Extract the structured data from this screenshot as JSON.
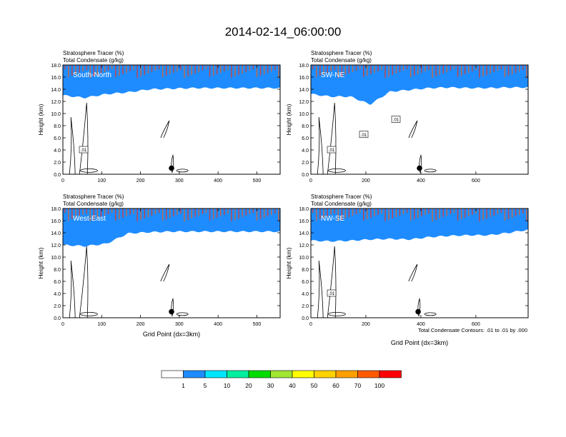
{
  "figure": {
    "title": "2014-02-14_06:00:00",
    "footnote": "Total Condensate Contours: .01 to .01 by .000"
  },
  "colorbar": {
    "colors": [
      "#ffffff",
      "#1e8cff",
      "#00e6ff",
      "#00f0a0",
      "#00dc00",
      "#a0e632",
      "#ffff00",
      "#ffd200",
      "#ffa000",
      "#ff5a00",
      "#ff0000"
    ],
    "labels": [
      "1",
      "5",
      "10",
      "20",
      "30",
      "40",
      "50",
      "60",
      "70",
      "100"
    ]
  },
  "colors": {
    "cloud_bands": [
      "#ff0000",
      "#ff5a00",
      "#ffa000",
      "#ffd200",
      "#ffff00",
      "#a0e632",
      "#00dc00",
      "#00f0a0",
      "#00e6ff",
      "#1e8cff"
    ]
  },
  "chart_data": [
    {
      "type": "heatmap",
      "panel": "South-North",
      "subtitle_lines": [
        "Stratosphere Tracer   (%)",
        "Total Condensate   (g/kg)"
      ],
      "xlabel": "",
      "ylabel": "Height (km)",
      "xlim": [
        0,
        560
      ],
      "ylim": [
        0,
        18
      ],
      "xticks": [
        0,
        100,
        200,
        300,
        400,
        500
      ],
      "yticks": [
        "0.0",
        "2.0",
        "4.0",
        "6.0",
        "8.0",
        "10.0",
        "12.0",
        "14.0",
        "16.0",
        "18.0"
      ],
      "contour_labels": [
        ".01"
      ],
      "marker": {
        "x": 280,
        "y": 1.0
      },
      "tracer_top_km": [
        14.9,
        14.6,
        14.6,
        14.7,
        14.8,
        14.8,
        14.6,
        14.5,
        14.6,
        14.6,
        14.6
      ],
      "blue_extent_km": [
        13.0,
        12.6,
        13.2,
        13.5,
        14.0,
        14.1,
        14.2,
        14.2,
        14.2,
        14.2,
        14.2
      ]
    },
    {
      "type": "heatmap",
      "panel": "SW-NE",
      "subtitle_lines": [
        "Stratosphere Tracer   (%)",
        "Total Condensate   (g/kg)"
      ],
      "xlabel": "",
      "ylabel": "Height (km)",
      "xlim": [
        0,
        790
      ],
      "ylim": [
        0,
        18
      ],
      "xticks": [
        0,
        200,
        400,
        600
      ],
      "yticks": [
        "0.0",
        "2.0",
        "4.0",
        "6.0",
        "8.0",
        "10.0",
        "12.0",
        "14.0",
        "16.0",
        "18.0"
      ],
      "contour_labels": [
        ".01",
        ".01",
        ".01"
      ],
      "marker": {
        "x": 395,
        "y": 1.0
      },
      "tracer_top_km": [
        14.4,
        14.5,
        14.6,
        14.2,
        14.9,
        15.1,
        15.3,
        15.2,
        15.3,
        15.3,
        15.4,
        15.4
      ],
      "blue_extent_km": [
        13.2,
        12.8,
        12.8,
        11.5,
        13.6,
        13.9,
        14.2,
        14.3,
        14.2,
        14.2,
        14.3,
        14.3
      ]
    },
    {
      "type": "heatmap",
      "panel": "West-East",
      "subtitle_lines": [
        "Stratosphere Tracer   (%)",
        "Total Condensate   (g/kg)"
      ],
      "xlabel": "Grid Point (dx=3km)",
      "ylabel": "Height (km)",
      "xlim": [
        0,
        560
      ],
      "ylim": [
        0,
        18
      ],
      "xticks": [
        0,
        100,
        200,
        300,
        400,
        500
      ],
      "yticks": [
        "0.0",
        "2.0",
        "4.0",
        "6.0",
        "8.0",
        "10.0",
        "12.0",
        "14.0",
        "16.0",
        "18.0"
      ],
      "contour_labels": [],
      "marker": {
        "x": 280,
        "y": 1.0
      },
      "tracer_top_km": [
        13.6,
        14.3,
        14.6,
        14.7,
        14.7,
        14.7,
        14.6,
        14.6,
        14.6,
        14.6,
        14.6
      ],
      "blue_extent_km": [
        12.0,
        11.8,
        12.2,
        13.9,
        14.1,
        14.2,
        14.2,
        14.2,
        14.2,
        14.2,
        14.2
      ]
    },
    {
      "type": "heatmap",
      "panel": "NW-SE",
      "subtitle_lines": [
        "Stratosphere Tracer   (%)",
        "Total Condensate   (g/kg)"
      ],
      "xlabel": "Grid Point (dx=3km)",
      "ylabel": "Height (km)",
      "xlim": [
        0,
        790
      ],
      "ylim": [
        0,
        18
      ],
      "xticks": [
        0,
        200,
        400,
        600
      ],
      "yticks": [
        "0.0",
        "2.0",
        "4.0",
        "6.0",
        "8.0",
        "10.0",
        "12.0",
        "14.0",
        "16.0",
        "18.0"
      ],
      "contour_labels": [
        ".01"
      ],
      "marker": {
        "x": 390,
        "y": 1.0
      },
      "tracer_top_km": [
        13.3,
        13.5,
        13.8,
        14.0,
        14.1,
        14.2,
        14.4,
        14.5,
        14.6,
        14.7,
        14.9,
        15.3
      ],
      "blue_extent_km": [
        12.7,
        12.6,
        12.7,
        12.9,
        13.0,
        12.9,
        13.3,
        13.5,
        13.6,
        13.6,
        14.0,
        14.5
      ]
    }
  ]
}
